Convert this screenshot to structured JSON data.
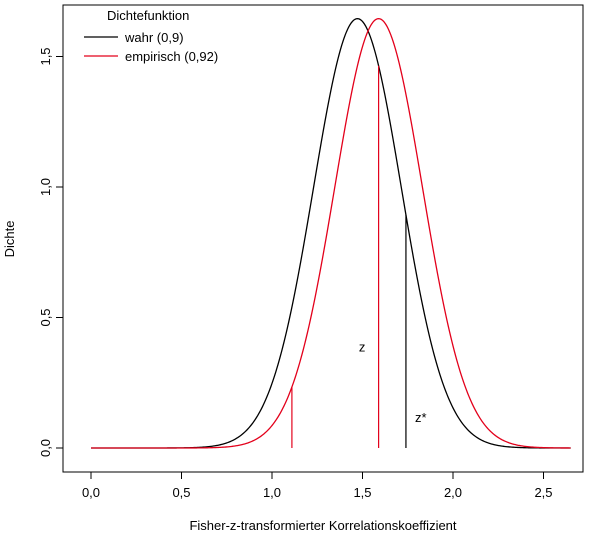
{
  "chart_data": {
    "type": "line",
    "title": "",
    "xlabel": "Fisher-z-transformierter Korrelationskoeffizient",
    "ylabel": "Dichte",
    "xlim": [
      0,
      2.65
    ],
    "ylim": [
      0,
      1.65
    ],
    "x_ticks": [
      0,
      0.5,
      1.0,
      1.5,
      2.0,
      2.5
    ],
    "x_tick_labels": [
      "0,0",
      "0,5",
      "1,0",
      "1,5",
      "2,0",
      "2,5"
    ],
    "y_ticks": [
      0,
      0.5,
      1.0,
      1.5
    ],
    "y_tick_labels": [
      "0,0",
      "0,5",
      "1,0",
      "1,5"
    ],
    "grid": false,
    "legend": {
      "title": "Dichtefunktion",
      "position": "top-left",
      "entries": [
        "wahr (0,9)",
        "empirisch (0,92)"
      ]
    },
    "series": [
      {
        "name": "wahr (0,9)",
        "color": "#000000",
        "distribution": "normal",
        "mean": 1.472,
        "sd": 0.2425,
        "x_range": [
          0,
          2.65
        ]
      },
      {
        "name": "empirisch (0,92)",
        "color": "#e3001b",
        "distribution": "normal",
        "mean": 1.589,
        "sd": 0.2425,
        "x_range": [
          0,
          2.65
        ]
      }
    ],
    "vertical_lines": [
      {
        "x": 1.11,
        "color": "#e3001b",
        "top": "curve:empirisch (0,92)"
      },
      {
        "x": 1.589,
        "color": "#e3001b",
        "top": "curve:wahr (0,9)"
      },
      {
        "x": 1.74,
        "color": "#000000",
        "top": "curve:wahr (0,9)"
      }
    ],
    "annotations": [
      {
        "text": "z",
        "x": 1.48,
        "y": 0.37
      },
      {
        "text": "z*",
        "x": 1.79,
        "y": 0.1
      }
    ]
  }
}
